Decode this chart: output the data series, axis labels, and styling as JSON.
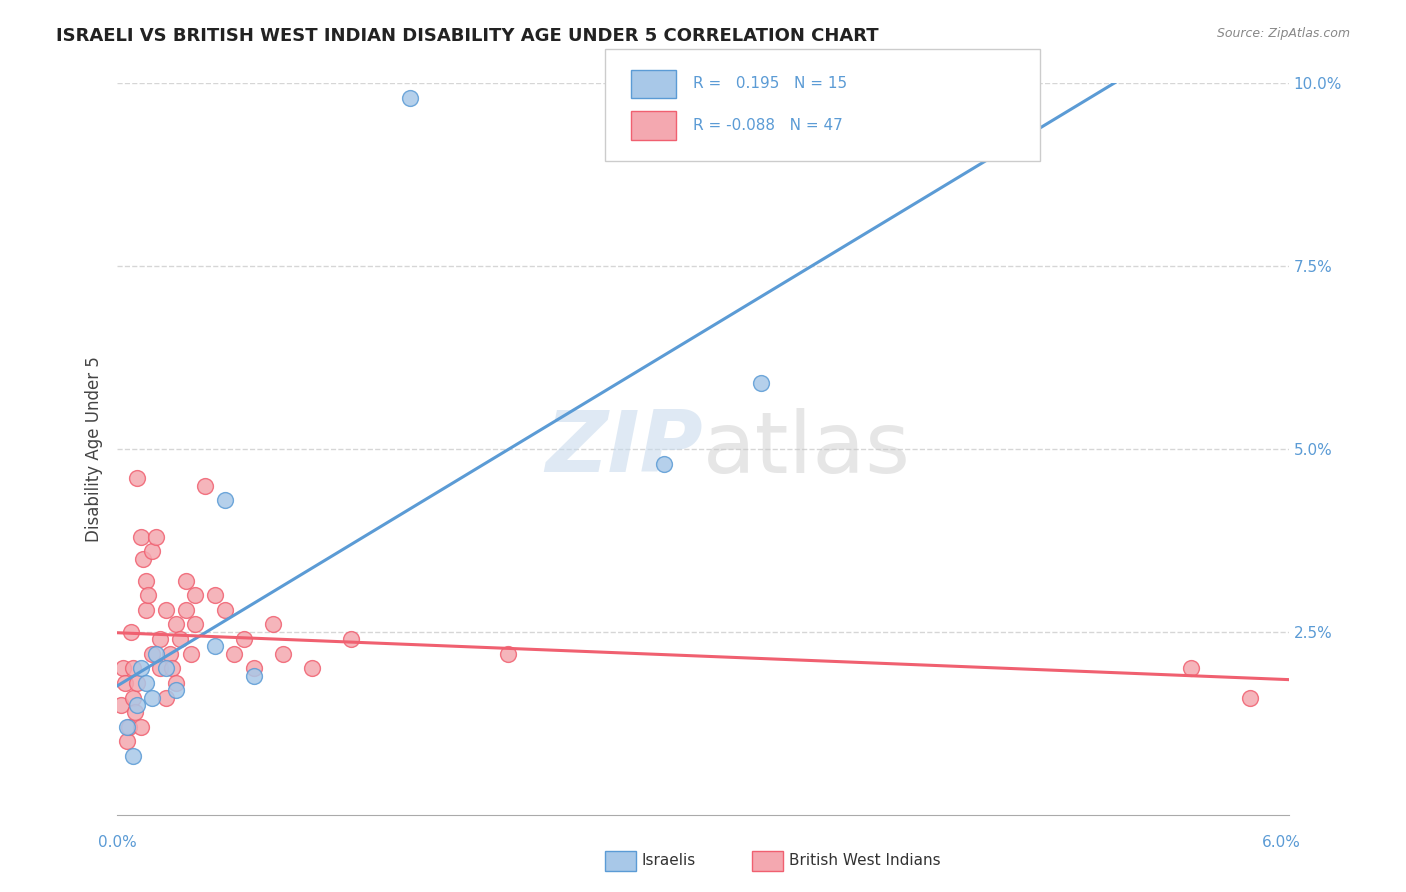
{
  "title": "ISRAELI VS BRITISH WEST INDIAN DISABILITY AGE UNDER 5 CORRELATION CHART",
  "source": "Source: ZipAtlas.com",
  "ylabel": "Disability Age Under 5",
  "xlim": [
    0.0,
    6.0
  ],
  "ylim": [
    0.0,
    10.0
  ],
  "ytick_labels": [
    "",
    "2.5%",
    "5.0%",
    "7.5%",
    "10.0%"
  ],
  "ytick_values": [
    0.0,
    2.5,
    5.0,
    7.5,
    10.0
  ],
  "israeli_R": 0.195,
  "israeli_N": 15,
  "bwi_R": -0.088,
  "bwi_N": 47,
  "israeli_color": "#a8c8e8",
  "bwi_color": "#f4a8b0",
  "israeli_line_color": "#5b9bd5",
  "bwi_line_color": "#f06070",
  "watermark_zip": "ZIP",
  "watermark_atlas": "atlas",
  "israeli_x": [
    0.05,
    0.08,
    0.1,
    0.12,
    0.15,
    0.18,
    0.2,
    0.25,
    0.3,
    0.5,
    0.55,
    0.7,
    1.5,
    2.8,
    3.3
  ],
  "israeli_y": [
    1.2,
    0.8,
    1.5,
    2.0,
    1.8,
    1.6,
    2.2,
    2.0,
    1.7,
    2.3,
    4.3,
    1.9,
    9.8,
    4.8,
    5.9
  ],
  "bwi_x": [
    0.02,
    0.03,
    0.04,
    0.05,
    0.06,
    0.07,
    0.08,
    0.08,
    0.09,
    0.1,
    0.1,
    0.12,
    0.12,
    0.13,
    0.15,
    0.15,
    0.16,
    0.18,
    0.18,
    0.2,
    0.22,
    0.22,
    0.25,
    0.25,
    0.27,
    0.28,
    0.3,
    0.3,
    0.32,
    0.35,
    0.35,
    0.38,
    0.4,
    0.4,
    0.45,
    0.5,
    0.55,
    0.6,
    0.65,
    0.7,
    0.8,
    0.85,
    1.0,
    1.2,
    2.0,
    5.5,
    5.8
  ],
  "bwi_y": [
    1.5,
    2.0,
    1.8,
    1.0,
    1.2,
    2.5,
    1.6,
    2.0,
    1.4,
    1.8,
    4.6,
    1.2,
    3.8,
    3.5,
    2.8,
    3.2,
    3.0,
    2.2,
    3.6,
    3.8,
    2.0,
    2.4,
    1.6,
    2.8,
    2.2,
    2.0,
    1.8,
    2.6,
    2.4,
    3.2,
    2.8,
    2.2,
    3.0,
    2.6,
    4.5,
    3.0,
    2.8,
    2.2,
    2.4,
    2.0,
    2.6,
    2.2,
    2.0,
    2.4,
    2.2,
    2.0,
    1.6
  ]
}
